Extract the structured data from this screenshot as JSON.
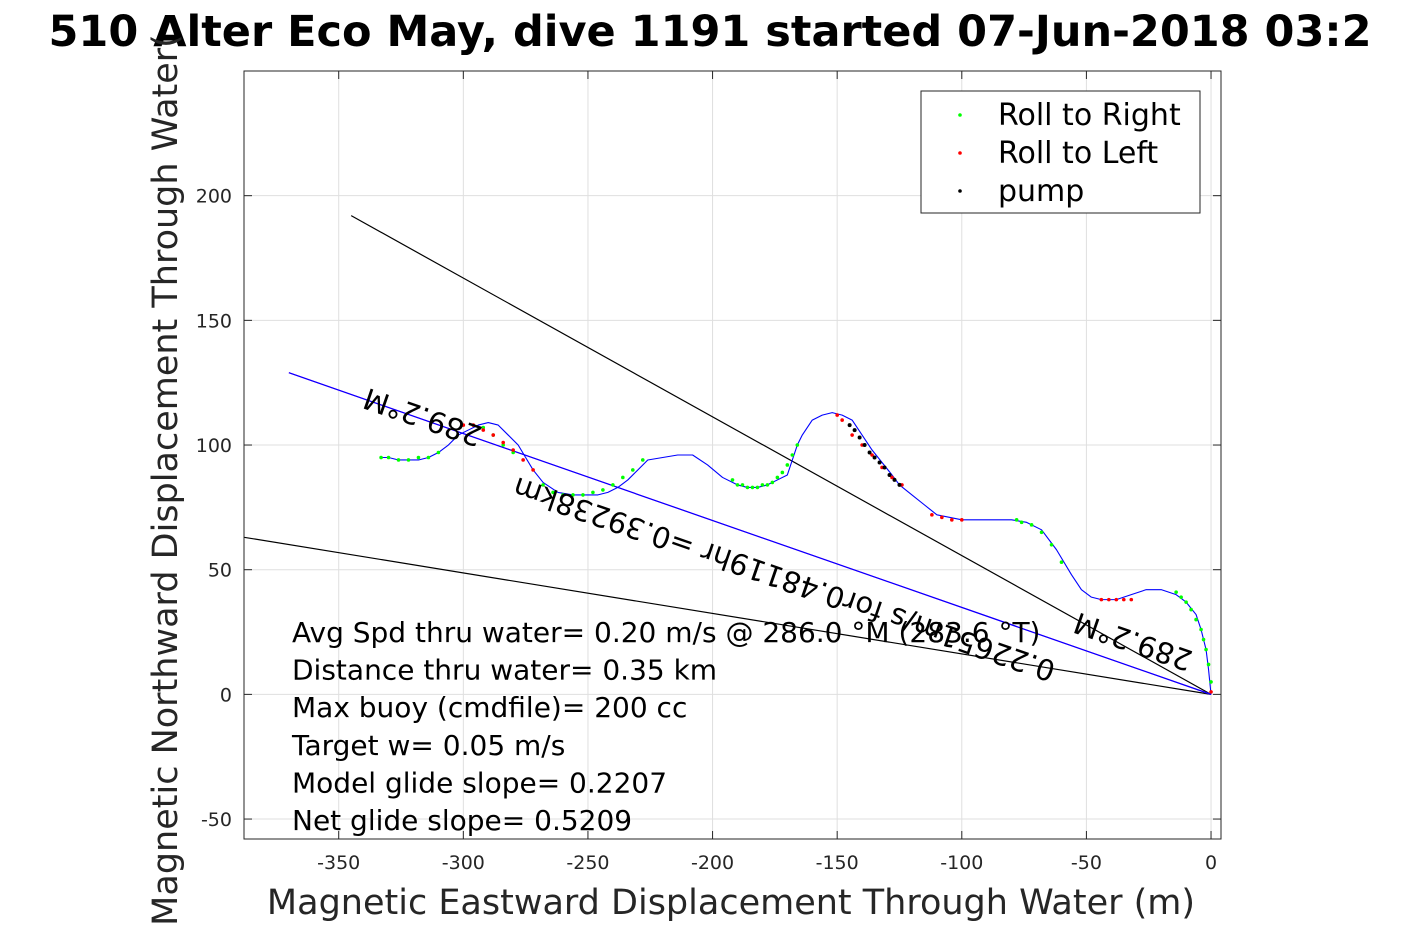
{
  "chart_data": {
    "type": "line",
    "title": "510 Alter Eco May, dive 1191 started 07-Jun-2018 03:2",
    "xlabel": "Magnetic Eastward Displacement Through Water (m)",
    "ylabel": "Magnetic Northward Displacement Through Water(",
    "xlim": [
      -388,
      4
    ],
    "ylim": [
      -58,
      250
    ],
    "xticks": [
      -350,
      -300,
      -250,
      -200,
      -150,
      -100,
      -50,
      0
    ],
    "yticks": [
      -50,
      0,
      50,
      100,
      150,
      200
    ],
    "grid": true,
    "legend_position": "top-right",
    "legend": [
      {
        "label": "Roll to Right",
        "color": "#00ff00"
      },
      {
        "label": "Roll to Left",
        "color": "#ff0000"
      },
      {
        "label": "pump",
        "color": "#000000"
      }
    ],
    "track": {
      "color": "#0000ff",
      "x": [
        0,
        -1,
        -2,
        -4,
        -6,
        -10,
        -14,
        -20,
        -26,
        -32,
        -38,
        -44,
        -48,
        -52,
        -56,
        -62,
        -68,
        -74,
        -80,
        -90,
        -100,
        -110,
        -115,
        -120,
        -125,
        -128,
        -132,
        -136,
        -140,
        -144,
        -148,
        -152,
        -156,
        -160,
        -164,
        -166,
        -168,
        -170,
        -174,
        -178,
        -182,
        -186,
        -190,
        -196,
        -202,
        -208,
        -214,
        -220,
        -226,
        -230,
        -234,
        -238,
        -242,
        -246,
        -250,
        -256,
        -262,
        -268,
        -272,
        -275,
        -278,
        -282,
        -286,
        -290,
        -294,
        -298,
        -302,
        -306,
        -310,
        -314,
        -318,
        -322,
        -326,
        -330,
        -333
      ],
      "y": [
        0,
        10,
        18,
        26,
        32,
        37,
        40,
        42,
        42,
        40,
        38,
        38,
        39,
        42,
        48,
        58,
        66,
        69,
        70,
        70,
        70,
        72,
        76,
        80,
        84,
        88,
        93,
        98,
        104,
        110,
        112,
        113,
        112,
        110,
        104,
        100,
        94,
        88,
        86,
        84,
        83,
        83,
        84,
        87,
        92,
        96,
        96,
        95,
        94,
        90,
        86,
        83,
        81,
        80,
        80,
        80,
        81,
        85,
        90,
        95,
        100,
        104,
        108,
        109,
        108,
        106,
        104,
        100,
        97,
        95,
        94,
        94,
        94,
        95,
        95
      ]
    },
    "roll_right": {
      "color": "#00ff00",
      "x": [
        0,
        -1,
        -2,
        -3,
        -4,
        -6,
        -8,
        -10,
        -12,
        -14,
        -60,
        -64,
        -68,
        -72,
        -76,
        -78,
        -166,
        -168,
        -170,
        -172,
        -174,
        -176,
        -178,
        -180,
        -182,
        -184,
        -186,
        -188,
        -190,
        -192,
        -228,
        -232,
        -236,
        -240,
        -244,
        -248,
        -252,
        -256,
        -260,
        -264,
        -268,
        -280,
        -284,
        -288,
        -292,
        -310,
        -314,
        -318,
        -322,
        -326,
        -330,
        -333
      ],
      "y": [
        5,
        12,
        18,
        22,
        26,
        30,
        34,
        37,
        39,
        41,
        53,
        60,
        65,
        68,
        69,
        70,
        100,
        96,
        92,
        89,
        87,
        85,
        84,
        84,
        83,
        83,
        83,
        84,
        84,
        86,
        94,
        90,
        87,
        84,
        82,
        81,
        80,
        80,
        80,
        81,
        84,
        97,
        100,
        104,
        107,
        97,
        95,
        95,
        94,
        94,
        95,
        95
      ]
    },
    "roll_left": {
      "color": "#ff0000",
      "x": [
        0,
        -32,
        -35,
        -38,
        -41,
        -44,
        -100,
        -104,
        -108,
        -112,
        -124,
        -128,
        -132,
        -136,
        -140,
        -144,
        -148,
        -150,
        -272,
        -276,
        -280,
        -284,
        -288,
        -292,
        -296,
        -300
      ],
      "y": [
        1,
        38,
        38,
        38,
        38,
        38,
        70,
        70,
        71,
        72,
        84,
        87,
        91,
        96,
        100,
        104,
        110,
        112,
        90,
        94,
        98,
        101,
        104,
        106,
        108,
        108
      ]
    },
    "pump": {
      "color": "#000000",
      "x": [
        -125,
        -127,
        -129,
        -131,
        -133,
        -135,
        -137,
        -139,
        -141,
        -143,
        -145
      ],
      "y": [
        84,
        86,
        88,
        91,
        93,
        95,
        97,
        100,
        103,
        106,
        108
      ]
    },
    "reference_lines": [
      {
        "color": "#000000",
        "x": [
          0,
          -345
        ],
        "y": [
          0,
          192
        ]
      },
      {
        "color": "#000000",
        "x": [
          0,
          -388
        ],
        "y": [
          0,
          63
        ]
      },
      {
        "color": "#ff00ff",
        "x": [
          0,
          -370
        ],
        "y": [
          0,
          129
        ]
      },
      {
        "color": "#0000ff",
        "x": [
          0,
          -370
        ],
        "y": [
          0,
          129
        ]
      }
    ],
    "path_labels": [
      {
        "text": "289.2°M",
        "x": -315,
        "y": 115,
        "angle": 199
      },
      {
        "text": "0.22651m/s for0.48119hr =0.39238km",
        "x": -170,
        "y": 50,
        "angle": 199
      },
      {
        "text": "289.2°M",
        "x": -30,
        "y": 25,
        "angle": 199
      }
    ],
    "annotations": [
      "Avg Spd thru water=  0.20 m/s @ 286.0  °M (283.6 °T)",
      "Distance thru water=  0.35 km",
      "Max buoy (cmdfile)= 200 cc",
      "Target w= 0.05 m/s",
      "Model glide slope= 0.2207",
      "Net glide slope= 0.5209"
    ]
  }
}
